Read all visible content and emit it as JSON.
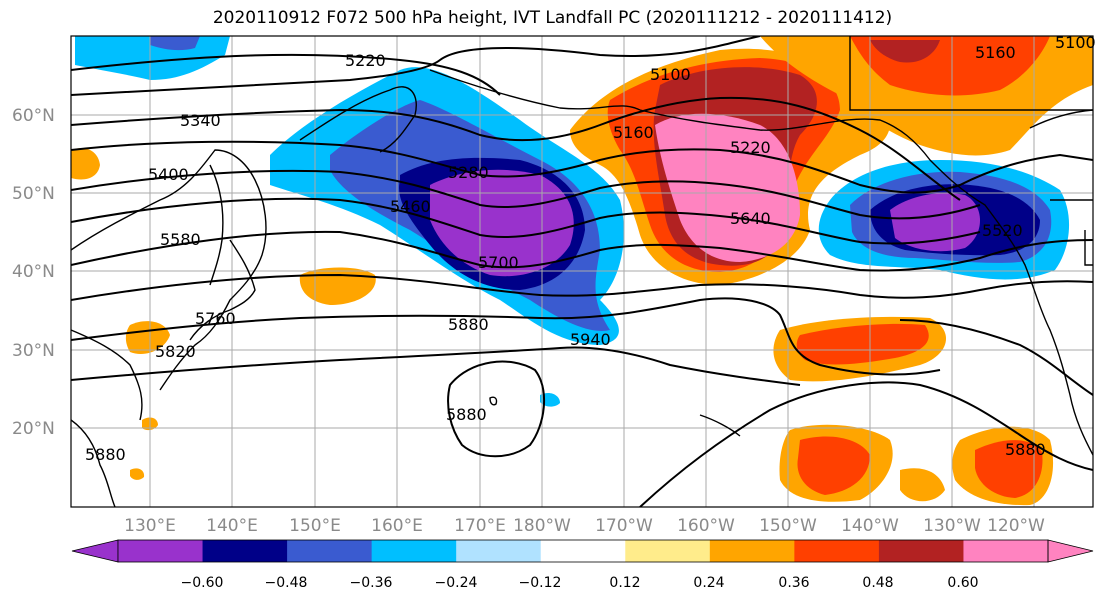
{
  "title": "2020110912 F072 500 hPa height, IVT Landfall PC (2020111212 - 2020111412)",
  "map": {
    "lat_labels": [
      "60°N",
      "50°N",
      "40°N",
      "30°N",
      "20°N"
    ],
    "lon_labels": [
      "130°E",
      "140°E",
      "150°E",
      "160°E",
      "170°E",
      "180°W",
      "170°W",
      "160°W",
      "150°W",
      "140°W",
      "130°W",
      "120°W"
    ],
    "contour_labels": [
      "5220",
      "5340",
      "5400",
      "5580",
      "5760",
      "5820",
      "5280",
      "5460",
      "5700",
      "5880",
      "5940",
      "5880",
      "5100",
      "5160",
      "5220",
      "5640",
      "5160",
      "5520",
      "5100",
      "5880",
      "5880"
    ]
  },
  "colorbar": {
    "colors": [
      "#9932cc",
      "#000088",
      "#3a5bd0",
      "#00bfff",
      "#b0e2ff",
      "#ffffff",
      "#ffec8b",
      "#ffa500",
      "#ff4000",
      "#b22222",
      "#ff83c0"
    ],
    "tick_labels": [
      "−0.60",
      "−0.48",
      "−0.36",
      "−0.24",
      "−0.12",
      "0.12",
      "0.24",
      "0.36",
      "0.48",
      "0.60"
    ]
  }
}
